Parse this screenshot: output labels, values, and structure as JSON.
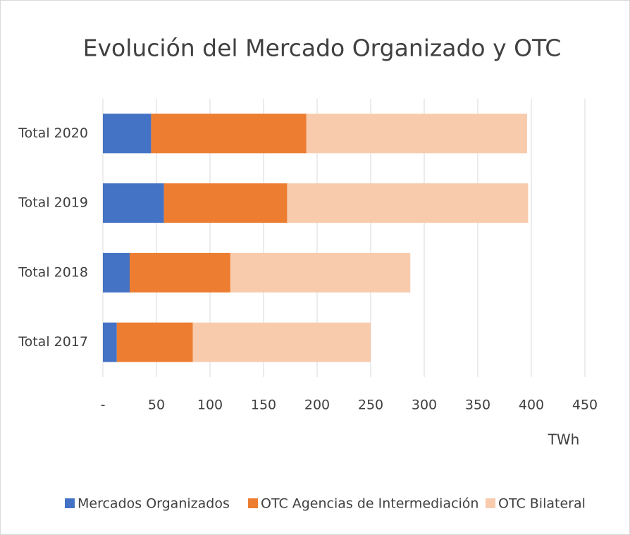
{
  "chart_data": {
    "type": "stacked_barh",
    "title": "Evolución del Mercado Organizado y OTC",
    "categories": [
      "Total 2020",
      "Total 2019",
      "Total 2018",
      "Total 2017"
    ],
    "series": [
      {
        "name": "Mercados Organizados",
        "color": "#4472c4",
        "values": [
          45,
          57,
          25,
          13
        ]
      },
      {
        "name": "OTC Agencias de Intermediación",
        "color": "#ed7d31",
        "values": [
          145,
          115,
          94,
          71
        ]
      },
      {
        "name": "OTC Bilateral",
        "color": "#f8cbad",
        "values": [
          206,
          225,
          168,
          166
        ]
      }
    ],
    "xlabel": "TWh",
    "xlim": [
      0,
      450
    ],
    "xticks": [
      {
        "value": 0,
        "label": "-"
      },
      50,
      100,
      150,
      200,
      250,
      300,
      350,
      400,
      450
    ],
    "grid": true,
    "legend": "bottom"
  }
}
